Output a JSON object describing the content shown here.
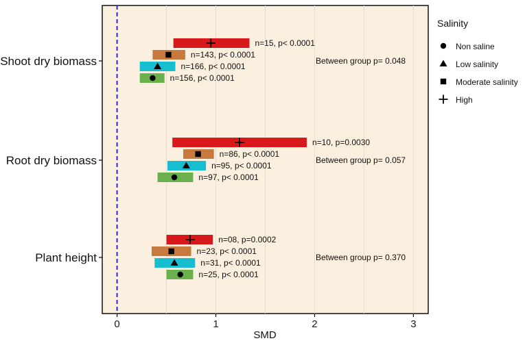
{
  "chart_data": {
    "type": "forest",
    "xlabel": "SMD",
    "xlim": [
      -0.15,
      3.15
    ],
    "xticks": [
      0,
      1,
      2,
      3
    ],
    "reference_line_x": 0,
    "legend": {
      "title": "Salinity",
      "position": "right",
      "entries": [
        {
          "name": "Non saline",
          "marker": "circle"
        },
        {
          "name": "Low salinity",
          "marker": "triangle"
        },
        {
          "name": "Moderate salinity",
          "marker": "square"
        },
        {
          "name": "High",
          "marker": "plus"
        }
      ]
    },
    "series_colors": {
      "High": "#d7191c",
      "Moderate salinity": "#c8793e",
      "Low salinity": "#17becf",
      "Non saline": "#6ab04c"
    },
    "groups": [
      {
        "name": "Shoot dry biomass",
        "between_group": "Between group p= 0.048",
        "rows": [
          {
            "series": "High",
            "marker": "plus",
            "estimate": 0.95,
            "ci": [
              0.57,
              1.34
            ],
            "label": "n=15, p< 0.0001"
          },
          {
            "series": "Moderate salinity",
            "marker": "square",
            "estimate": 0.52,
            "ci": [
              0.36,
              0.69
            ],
            "label": "n=143, p< 0.0001"
          },
          {
            "series": "Low salinity",
            "marker": "triangle",
            "estimate": 0.41,
            "ci": [
              0.23,
              0.59
            ],
            "label": "n=166, p< 0.0001"
          },
          {
            "series": "Non saline",
            "marker": "circle",
            "estimate": 0.36,
            "ci": [
              0.23,
              0.48
            ],
            "label": "n=156, p< 0.0001"
          }
        ]
      },
      {
        "name": "Root dry biomass",
        "between_group": "Between group p= 0.057",
        "rows": [
          {
            "series": "High",
            "marker": "plus",
            "estimate": 1.24,
            "ci": [
              0.56,
              1.92
            ],
            "label": "n=10, p=0.0030"
          },
          {
            "series": "Moderate salinity",
            "marker": "square",
            "estimate": 0.82,
            "ci": [
              0.67,
              0.98
            ],
            "label": "n=86, p< 0.0001"
          },
          {
            "series": "Low salinity",
            "marker": "triangle",
            "estimate": 0.7,
            "ci": [
              0.51,
              0.9
            ],
            "label": "n=95, p< 0.0001"
          },
          {
            "series": "Non saline",
            "marker": "circle",
            "estimate": 0.58,
            "ci": [
              0.41,
              0.77
            ],
            "label": "n=97, p< 0.0001"
          }
        ]
      },
      {
        "name": "Plant height",
        "between_group": "Between group p= 0.370",
        "rows": [
          {
            "series": "High",
            "marker": "plus",
            "estimate": 0.74,
            "ci": [
              0.5,
              0.97
            ],
            "label": "n=08, p=0.0002"
          },
          {
            "series": "Moderate salinity",
            "marker": "square",
            "estimate": 0.55,
            "ci": [
              0.35,
              0.75
            ],
            "label": "n=23, p< 0.0001"
          },
          {
            "series": "Low salinity",
            "marker": "triangle",
            "estimate": 0.58,
            "ci": [
              0.38,
              0.79
            ],
            "label": "n=31, p< 0.0001"
          },
          {
            "series": "Non saline",
            "marker": "circle",
            "estimate": 0.64,
            "ci": [
              0.5,
              0.77
            ],
            "label": "n=25, p< 0.0001"
          }
        ]
      }
    ]
  }
}
